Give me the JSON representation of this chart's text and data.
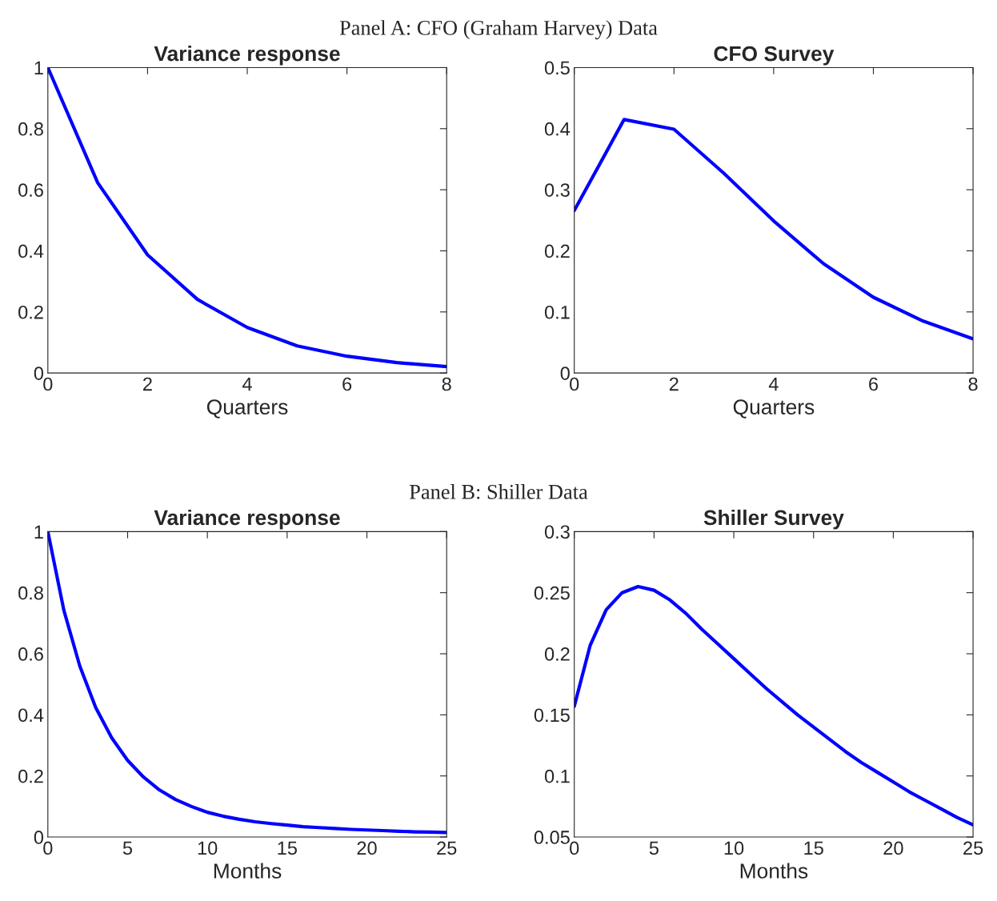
{
  "chart_data": [
    {
      "type": "line",
      "subtitle": "Panel A: CFO (Graham Harvey) Data",
      "title": "Variance response",
      "xlabel": "Quarters",
      "x": [
        0,
        1,
        2,
        3,
        4,
        5,
        6,
        7,
        8
      ],
      "series": [
        {
          "color": "#0000ff",
          "values": [
            1,
            0.623,
            0.387,
            0.241,
            0.149,
            0.089,
            0.055,
            0.034,
            0.021
          ]
        }
      ],
      "xlim": [
        0,
        8
      ],
      "ylim": [
        0,
        1
      ],
      "xticks": [
        0,
        2,
        4,
        6,
        8
      ],
      "yticks": [
        0,
        0.2,
        0.4,
        0.6,
        0.8,
        1
      ],
      "grid": false
    },
    {
      "type": "line",
      "title": "CFO Survey",
      "xlabel": "Quarters",
      "x": [
        0,
        1,
        2,
        3,
        4,
        5,
        6,
        7,
        8
      ],
      "series": [
        {
          "color": "#0000ff",
          "values": [
            0.266,
            0.415,
            0.399,
            0.327,
            0.249,
            0.179,
            0.124,
            0.085,
            0.056
          ]
        }
      ],
      "xlim": [
        0,
        8
      ],
      "ylim": [
        0,
        0.5
      ],
      "xticks": [
        0,
        2,
        4,
        6,
        8
      ],
      "yticks": [
        0,
        0.1,
        0.2,
        0.3,
        0.4,
        0.5
      ],
      "grid": false
    },
    {
      "type": "line",
      "subtitle": "Panel B: Shiller Data",
      "title": "Variance response",
      "xlabel": "Months",
      "x": [
        0,
        1,
        2,
        3,
        4,
        5,
        6,
        7,
        8,
        9,
        10,
        11,
        12,
        13,
        14,
        15,
        16,
        17,
        18,
        19,
        20,
        21,
        22,
        23,
        24,
        25
      ],
      "series": [
        {
          "color": "#0000ff",
          "values": [
            1,
            0.743,
            0.56,
            0.424,
            0.325,
            0.251,
            0.196,
            0.154,
            0.123,
            0.1,
            0.081,
            0.068,
            0.058,
            0.05,
            0.044,
            0.039,
            0.034,
            0.031,
            0.028,
            0.025,
            0.023,
            0.021,
            0.019,
            0.017,
            0.016,
            0.015
          ]
        }
      ],
      "xlim": [
        0,
        25
      ],
      "ylim": [
        0,
        1
      ],
      "xticks": [
        0,
        5,
        10,
        15,
        20,
        25
      ],
      "yticks": [
        0,
        0.2,
        0.4,
        0.6,
        0.8,
        1
      ],
      "grid": false
    },
    {
      "type": "line",
      "title": "Shiller Survey",
      "xlabel": "Months",
      "x": [
        0,
        1,
        2,
        3,
        4,
        5,
        6,
        7,
        8,
        9,
        10,
        11,
        12,
        13,
        14,
        15,
        16,
        17,
        18,
        19,
        20,
        21,
        22,
        23,
        24,
        25
      ],
      "series": [
        {
          "color": "#0000ff",
          "values": [
            0.157,
            0.207,
            0.236,
            0.25,
            0.255,
            0.252,
            0.244,
            0.233,
            0.22,
            0.208,
            0.196,
            0.184,
            0.172,
            0.161,
            0.15,
            0.14,
            0.13,
            0.12,
            0.111,
            0.103,
            0.095,
            0.087,
            0.08,
            0.073,
            0.066,
            0.06
          ]
        }
      ],
      "xlim": [
        0,
        25
      ],
      "ylim": [
        0.05,
        0.3
      ],
      "xticks": [
        0,
        5,
        10,
        15,
        20,
        25
      ],
      "yticks": [
        0.05,
        0.1,
        0.15,
        0.2,
        0.25,
        0.3
      ],
      "grid": false
    }
  ]
}
